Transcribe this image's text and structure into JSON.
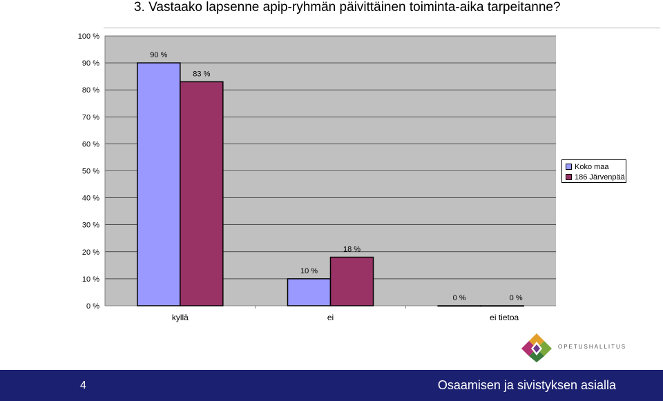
{
  "slide": {
    "title": "3. Vastaako lapsenne apip-ryhmän päivittäinen toiminta-aika tarpeitanne?",
    "page_number": "4",
    "footer_motto": "Osaamisen ja sivistyksen asialla",
    "logo_text": "OPETUSHALLITUS"
  },
  "colors": {
    "plot_bg": "#c0c0c0",
    "series1": "#9999ff",
    "series2": "#993366",
    "footer": "#1c2070"
  },
  "chart_data": {
    "type": "bar",
    "title": "",
    "xlabel": "",
    "ylabel": "",
    "categories": [
      "kyllä",
      "ei",
      "ei tietoa"
    ],
    "series": [
      {
        "name": "Koko maa",
        "values": [
          90,
          10,
          0
        ],
        "labels": [
          "90 %",
          "10 %",
          "0 %"
        ]
      },
      {
        "name": "186  Järvenpää",
        "values": [
          83,
          18,
          0
        ],
        "labels": [
          "83 %",
          "18 %",
          "0 %"
        ]
      }
    ],
    "ylim": [
      0,
      100
    ],
    "yticks": [
      0,
      10,
      20,
      30,
      40,
      50,
      60,
      70,
      80,
      90,
      100
    ],
    "ytick_labels": [
      "0 %",
      "10 %",
      "20 %",
      "30 %",
      "40 %",
      "50 %",
      "60 %",
      "70 %",
      "80 %",
      "90 %",
      "100 %"
    ],
    "grid": true,
    "legend_position": "right"
  }
}
